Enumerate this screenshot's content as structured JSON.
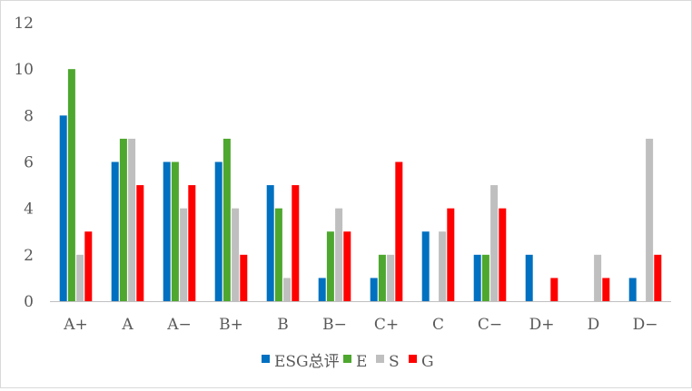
{
  "chart_data": {
    "type": "bar",
    "categories": [
      "A+",
      "A",
      "A−",
      "B+",
      "B",
      "B−",
      "C+",
      "C",
      "C−",
      "D+",
      "D",
      "D−"
    ],
    "series": [
      {
        "name": "ESG总评",
        "color": "#0070C0",
        "values": [
          8,
          6,
          6,
          6,
          5,
          1,
          1,
          3,
          2,
          2,
          0,
          1
        ]
      },
      {
        "name": "E",
        "color": "#4EA72E",
        "values": [
          10,
          7,
          6,
          7,
          4,
          3,
          2,
          0,
          2,
          0,
          0,
          0
        ]
      },
      {
        "name": "S",
        "color": "#BFBFBF",
        "values": [
          2,
          7,
          4,
          4,
          1,
          4,
          2,
          3,
          5,
          0,
          2,
          7
        ]
      },
      {
        "name": "G",
        "color": "#FF0000",
        "values": [
          3,
          5,
          5,
          2,
          5,
          3,
          6,
          4,
          4,
          1,
          1,
          2
        ]
      }
    ],
    "ylim": [
      0,
      12
    ],
    "yticks": [
      0,
      2,
      4,
      6,
      8,
      10,
      12
    ],
    "grid": false,
    "legend_position": "bottom",
    "title": "",
    "xlabel": "",
    "ylabel": ""
  }
}
